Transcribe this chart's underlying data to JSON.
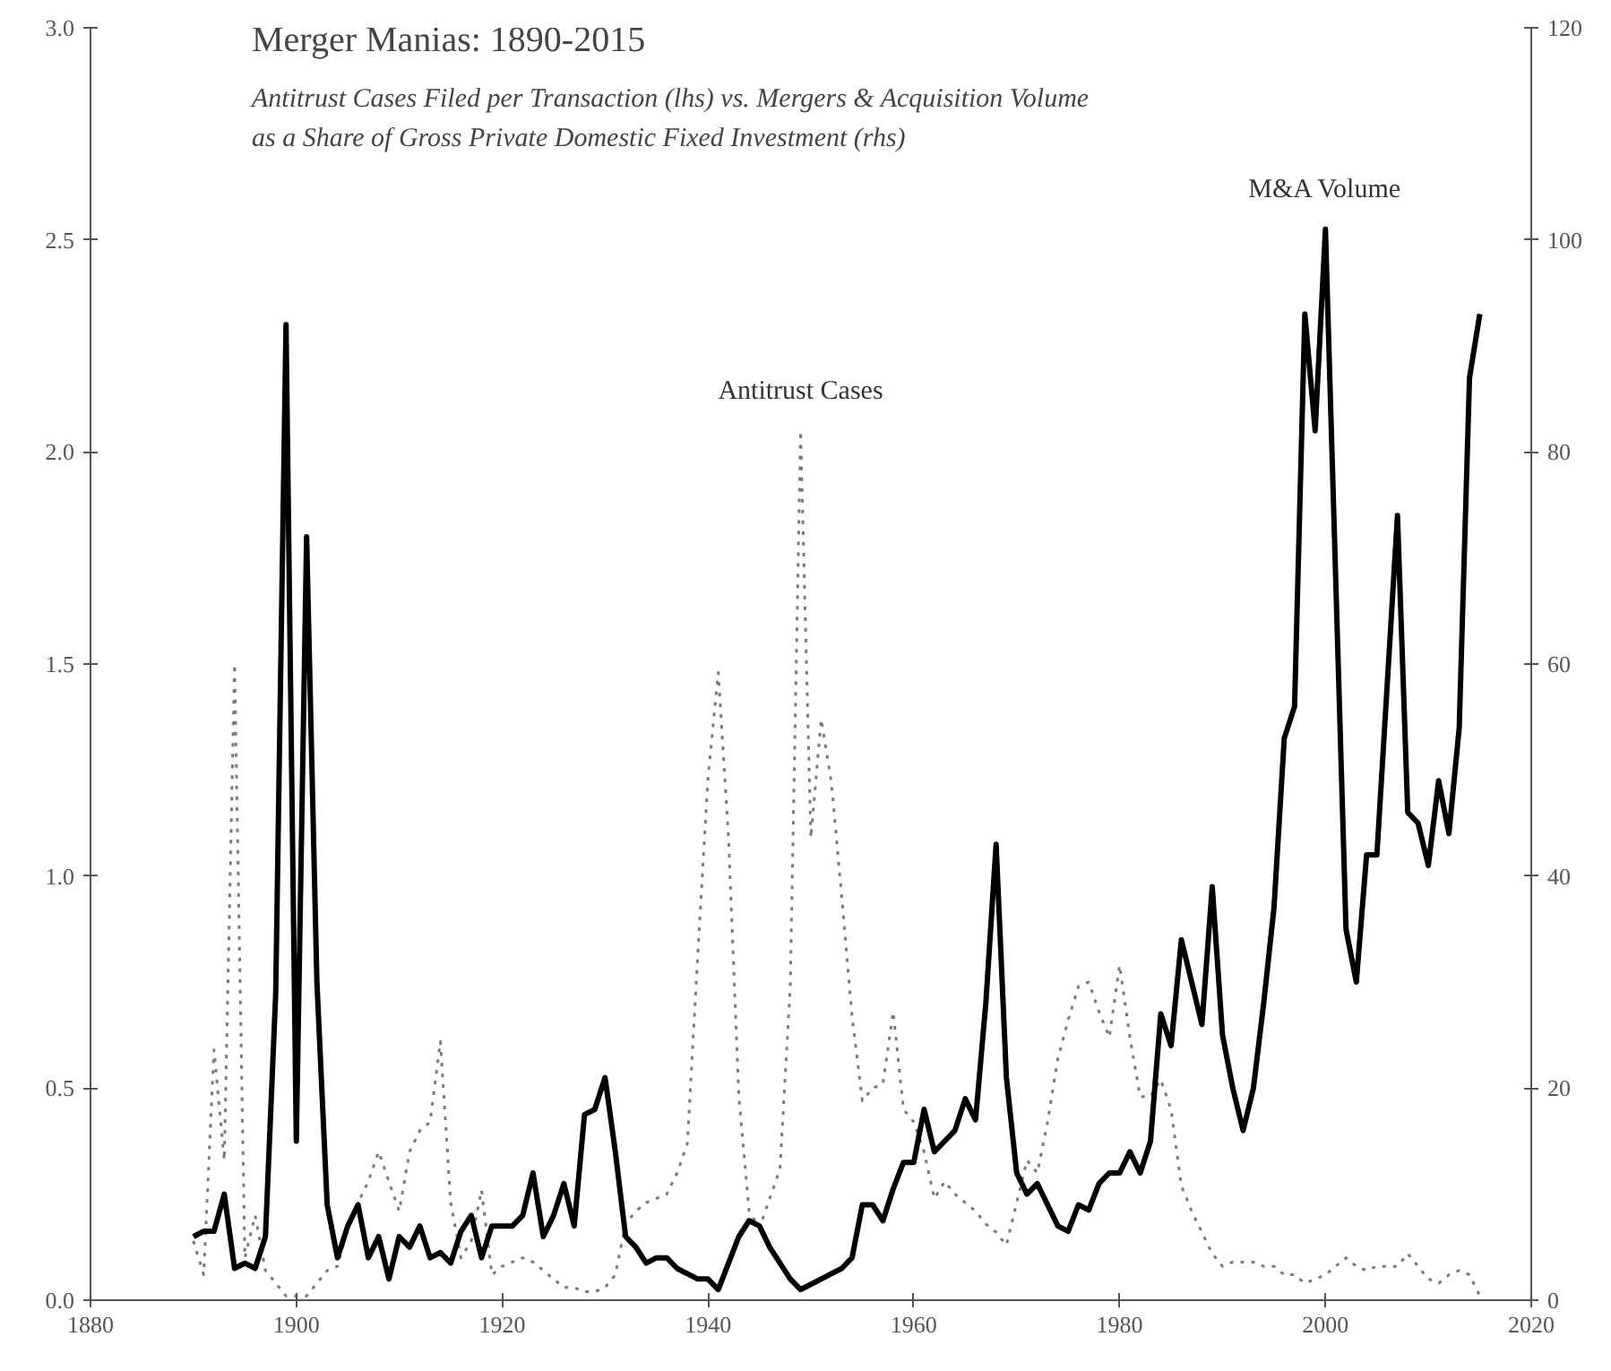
{
  "chart_data": {
    "type": "line",
    "title": "Merger Manias: 1890-2015",
    "subtitle": "Antitrust Cases Filed per Transaction (lhs) vs. Mergers & Acquisition Volume as a Share of Gross Private Domestic Fixed Investment (rhs)",
    "x": [
      1890,
      1891,
      1892,
      1893,
      1894,
      1895,
      1896,
      1897,
      1898,
      1899,
      1900,
      1901,
      1902,
      1903,
      1904,
      1905,
      1906,
      1907,
      1908,
      1909,
      1910,
      1911,
      1912,
      1913,
      1914,
      1915,
      1916,
      1917,
      1918,
      1919,
      1920,
      1921,
      1922,
      1923,
      1924,
      1925,
      1926,
      1927,
      1928,
      1929,
      1930,
      1931,
      1932,
      1933,
      1934,
      1935,
      1936,
      1937,
      1938,
      1939,
      1940,
      1941,
      1942,
      1943,
      1944,
      1945,
      1946,
      1947,
      1948,
      1949,
      1950,
      1951,
      1952,
      1953,
      1954,
      1955,
      1956,
      1957,
      1958,
      1959,
      1960,
      1961,
      1962,
      1963,
      1964,
      1965,
      1966,
      1967,
      1968,
      1969,
      1970,
      1971,
      1972,
      1973,
      1974,
      1975,
      1976,
      1977,
      1978,
      1979,
      1980,
      1981,
      1982,
      1983,
      1984,
      1985,
      1986,
      1987,
      1988,
      1989,
      1990,
      1991,
      1992,
      1993,
      1994,
      1995,
      1996,
      1997,
      1998,
      1999,
      2000,
      2001,
      2002,
      2003,
      2004,
      2005,
      2006,
      2007,
      2008,
      2009,
      2010,
      2011,
      2012,
      2013,
      2014,
      2015
    ],
    "series": [
      {
        "name": "Antitrust Cases",
        "color": "#7a7a7a",
        "line_style": "dotted",
        "values": [
          0.14,
          0.06,
          0.59,
          0.33,
          1.5,
          0.1,
          0.2,
          0.07,
          0.04,
          0.01,
          0.01,
          0.01,
          0.04,
          0.07,
          0.08,
          0.17,
          0.23,
          0.28,
          0.35,
          0.28,
          0.21,
          0.35,
          0.4,
          0.42,
          0.61,
          0.23,
          0.1,
          0.14,
          0.26,
          0.06,
          0.08,
          0.09,
          0.1,
          0.09,
          0.07,
          0.05,
          0.03,
          0.03,
          0.02,
          0.02,
          0.03,
          0.06,
          0.18,
          0.21,
          0.23,
          0.24,
          0.25,
          0.3,
          0.37,
          0.81,
          1.23,
          1.48,
          1.09,
          0.48,
          0.21,
          0.17,
          0.24,
          0.31,
          0.74,
          2.05,
          1.09,
          1.37,
          1.22,
          0.95,
          0.67,
          0.47,
          0.5,
          0.51,
          0.68,
          0.45,
          0.42,
          0.35,
          0.24,
          0.28,
          0.25,
          0.23,
          0.21,
          0.18,
          0.16,
          0.13,
          0.23,
          0.33,
          0.3,
          0.42,
          0.57,
          0.66,
          0.74,
          0.75,
          0.68,
          0.62,
          0.79,
          0.62,
          0.48,
          0.48,
          0.52,
          0.45,
          0.27,
          0.21,
          0.16,
          0.11,
          0.08,
          0.09,
          0.09,
          0.09,
          0.08,
          0.08,
          0.06,
          0.06,
          0.04,
          0.05,
          0.06,
          0.08,
          0.1,
          0.08,
          0.07,
          0.08,
          0.08,
          0.08,
          0.11,
          0.08,
          0.05,
          0.04,
          0.06,
          0.07,
          0.06,
          0.01
        ]
      },
      {
        "name": "M&A Volume",
        "color": "#000000",
        "line_style": "solid",
        "axis": "y2",
        "values": [
          6,
          6.5,
          6.5,
          10,
          3,
          3.5,
          3,
          6,
          29,
          92,
          15,
          72,
          30,
          9,
          4,
          7,
          9,
          4,
          6,
          2,
          6,
          5,
          7,
          4,
          4.5,
          3.5,
          6.5,
          8,
          4,
          7,
          7,
          7,
          8,
          12,
          6,
          8,
          11,
          7,
          17.5,
          18,
          21,
          14,
          6,
          5,
          3.5,
          4,
          4,
          3,
          2.5,
          2,
          2,
          1,
          3.5,
          6,
          7.5,
          7,
          5,
          3.5,
          2,
          1,
          1.5,
          2,
          2.5,
          3,
          4,
          9,
          9,
          7.5,
          10.5,
          13,
          13,
          18,
          14,
          15,
          16,
          19,
          17,
          28,
          43,
          21,
          12,
          10,
          11,
          9,
          7,
          6.5,
          9,
          8.5,
          11,
          12,
          12,
          14,
          12,
          15,
          27,
          24,
          34,
          30,
          26,
          39,
          25,
          20,
          16,
          20,
          28,
          37,
          53,
          56,
          93,
          82,
          101,
          68,
          35,
          30,
          42,
          42,
          58,
          74,
          46,
          45,
          41,
          49,
          44,
          54,
          87,
          93
        ]
      }
    ],
    "xlim": [
      1880,
      2020
    ],
    "xticks": [
      1880,
      1900,
      1920,
      1940,
      1960,
      1980,
      2000,
      2020
    ],
    "ylim": [
      0,
      3
    ],
    "yticks": [
      {
        "value": 0,
        "label": "0.0"
      },
      {
        "value": 0.5,
        "label": "0.5"
      },
      {
        "value": 1,
        "label": "1.0"
      },
      {
        "value": 1.5,
        "label": "1.5"
      },
      {
        "value": 2,
        "label": "2.0"
      },
      {
        "value": 2.5,
        "label": "2.5"
      },
      {
        "value": 3,
        "label": "3.0"
      }
    ],
    "y2lim": [
      0,
      120
    ],
    "y2ticks": [
      0,
      20,
      40,
      60,
      80,
      100,
      120
    ],
    "grid": false,
    "legend": false,
    "marker": "none"
  }
}
